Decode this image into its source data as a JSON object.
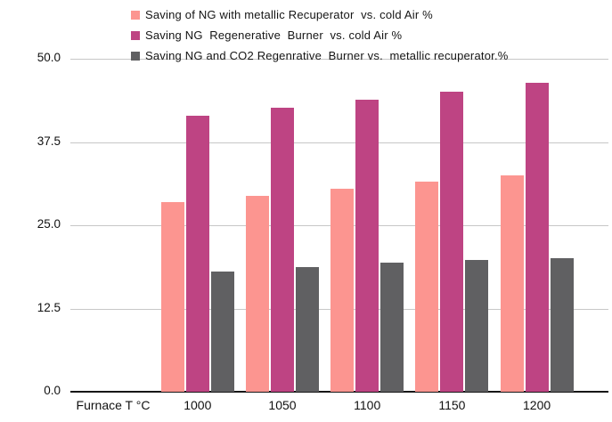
{
  "chart_data": {
    "type": "bar",
    "title": "",
    "x_axis_label": "Furnace T °C",
    "categories": [
      "1000",
      "1050",
      "1100",
      "1150",
      "1200"
    ],
    "series": [
      {
        "name": "Saving of NG with metallic Recuperator  vs. cold Air %",
        "color": "#FC9590",
        "values": [
          28.5,
          29.4,
          30.5,
          31.5,
          32.5
        ]
      },
      {
        "name": "Saving NG  Regenerative  Burner  vs. cold Air %",
        "color": "#BE4483",
        "values": [
          41.5,
          42.6,
          43.8,
          45.1,
          46.4
        ]
      },
      {
        "name": "Saving NG and CO2 Regenrative  Burner vs.  metallic recuperator.%",
        "color": "#606062",
        "values": [
          18.1,
          18.7,
          19.4,
          19.8,
          20.1
        ]
      }
    ],
    "ylim": [
      0,
      50
    ],
    "yticks": [
      0,
      12.5,
      25,
      37.5,
      50
    ],
    "ytick_labels": [
      "0.0",
      "12.5",
      "25.0",
      "37.5",
      "50.0"
    ],
    "grid": true,
    "legend_position": "top-left",
    "colors": {
      "gridline": "#c7c7c7",
      "axis_line": "#161616",
      "text": "#111111",
      "background": "#ffffff"
    }
  }
}
